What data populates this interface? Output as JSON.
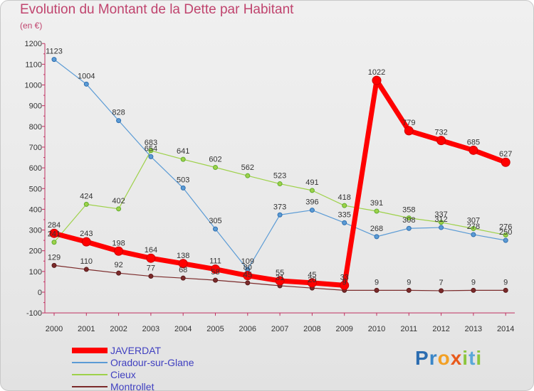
{
  "chart_data": {
    "type": "line",
    "title": "Evolution du Montant de la Dette par Habitant",
    "subtitle": "(en €)",
    "x": [
      "2000",
      "2001",
      "2002",
      "2003",
      "2004",
      "2005",
      "2006",
      "2007",
      "2008",
      "2009",
      "2010",
      "2011",
      "2012",
      "2013",
      "2014"
    ],
    "yticks": [
      "-100",
      "0",
      "100",
      "200",
      "300",
      "400",
      "500",
      "600",
      "700",
      "800",
      "900",
      "1000",
      "1100",
      "1200"
    ],
    "ylim": [
      -100,
      1200
    ],
    "grid": false,
    "legend_position": "bottom-left",
    "series": [
      {
        "name": "JAVERDAT",
        "color": "#ff0000",
        "values": [
          284,
          243,
          198,
          164,
          138,
          111,
          80,
          55,
          45,
          33,
          1022,
          779,
          732,
          685,
          627
        ]
      },
      {
        "name": "Oradour-sur-Glane",
        "color": "#5b9bd5",
        "values": [
          1123,
          1004,
          828,
          654,
          503,
          305,
          109,
          373,
          396,
          335,
          268,
          308,
          312,
          278,
          250
        ]
      },
      {
        "name": "Cieux",
        "color": "#9ed14a",
        "values": [
          241,
          424,
          402,
          683,
          641,
          602,
          562,
          523,
          491,
          418,
          391,
          358,
          337,
          307,
          276
        ]
      },
      {
        "name": "Montrollet",
        "color": "#7b2a2a",
        "values": [
          129,
          110,
          92,
          77,
          68,
          58,
          45,
          31,
          20,
          9,
          9,
          9,
          7,
          9,
          9
        ]
      }
    ]
  },
  "logo": {
    "letters": [
      {
        "ch": "P",
        "color": "#2b6cb0"
      },
      {
        "ch": "r",
        "color": "#3a86c8"
      },
      {
        "ch": "o",
        "color": "#f2a025"
      },
      {
        "ch": "x",
        "color": "#e85a1c"
      },
      {
        "ch": "i",
        "color": "#8cc63e"
      },
      {
        "ch": "t",
        "color": "#5aa8d8"
      },
      {
        "ch": "i",
        "color": "#8cc63e"
      }
    ]
  }
}
